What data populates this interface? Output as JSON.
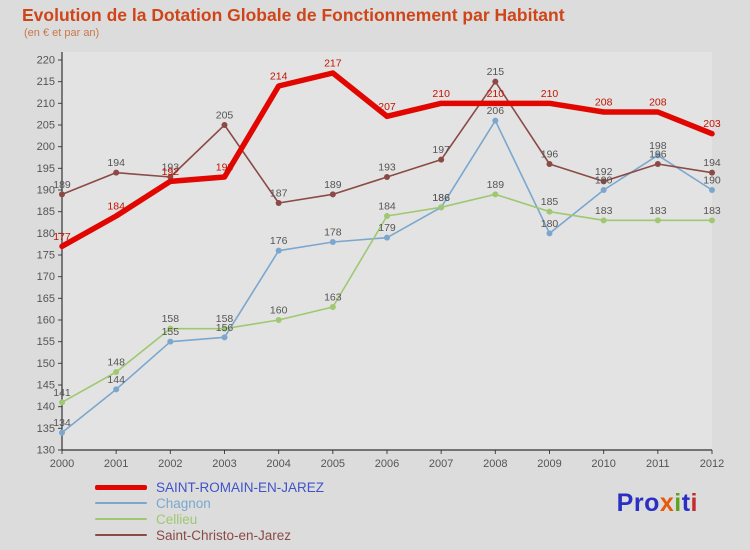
{
  "title": "Evolution de la Dotation Globale de Fonctionnement par Habitant",
  "subtitle": "(en € et par an)",
  "logo": {
    "segments": [
      {
        "text": "Pro",
        "color": "#2b2fc4"
      },
      {
        "text": "x",
        "color": "#e8590c"
      },
      {
        "text": "i",
        "color": "#5fa41f"
      },
      {
        "text": "t",
        "color": "#2b2fc4"
      },
      {
        "text": "i",
        "color": "#c42b2b"
      }
    ]
  },
  "chart_data": {
    "type": "line",
    "title": "Evolution de la Dotation Globale de Fonctionnement par Habitant",
    "subtitle": "(en € et par an)",
    "x": [
      2000,
      2001,
      2002,
      2003,
      2004,
      2005,
      2006,
      2007,
      2008,
      2009,
      2010,
      2011,
      2012
    ],
    "ylim": [
      130,
      220
    ],
    "ytick_step": 5,
    "grid": false,
    "legend_position": "bottom-left",
    "series": [
      {
        "name": "SAINT-ROMAIN-EN-JAREZ",
        "values": [
          177,
          184,
          192,
          193,
          214,
          217,
          207,
          210,
          210,
          210,
          208,
          208,
          203
        ],
        "color": "#e10600",
        "label_color": "#c41200",
        "legend_color": "#4153c8",
        "line_width": 5.5,
        "marker": false
      },
      {
        "name": "Chagnon",
        "values": [
          134,
          144,
          155,
          156,
          176,
          178,
          179,
          186,
          206,
          180,
          190,
          198,
          190
        ],
        "color": "#7ba7cf",
        "label_color": "#555555",
        "legend_color": "#7ba7cf",
        "line_width": 1.6,
        "marker": true
      },
      {
        "name": "Cellieu",
        "values": [
          141,
          148,
          158,
          158,
          160,
          163,
          184,
          186,
          189,
          185,
          183,
          183,
          183
        ],
        "color": "#9fc870",
        "label_color": "#555555",
        "legend_color": "#9fc870",
        "line_width": 1.6,
        "marker": true
      },
      {
        "name": "Saint-Christo-en-Jarez",
        "values": [
          189,
          194,
          193,
          205,
          187,
          189,
          193,
          197,
          215,
          196,
          192,
          196,
          194
        ],
        "color": "#8b4a45",
        "label_color": "#555555",
        "legend_color": "#8b4a45",
        "line_width": 1.6,
        "marker": true
      }
    ]
  }
}
